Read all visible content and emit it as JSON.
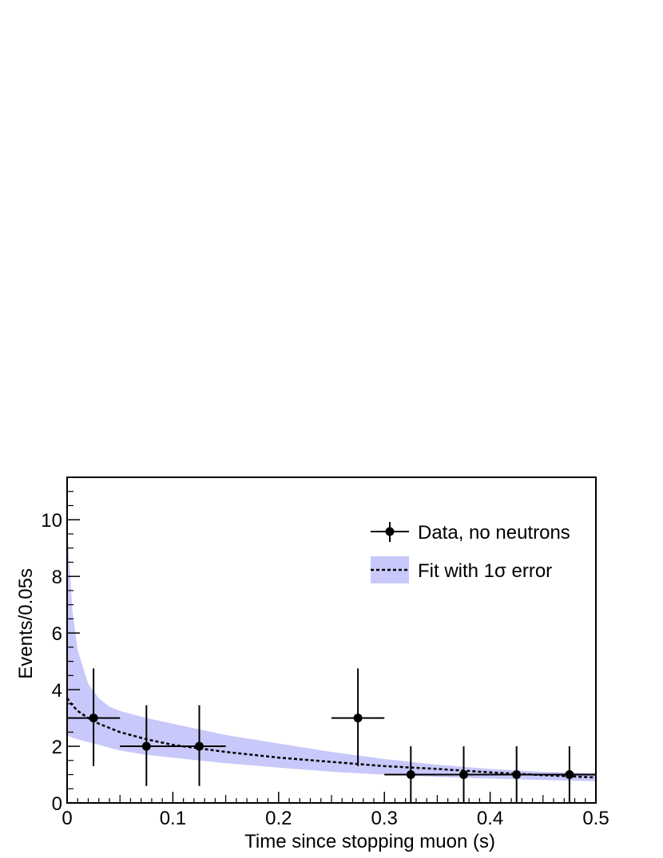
{
  "chart_data": {
    "type": "scatter",
    "title": "",
    "xlabel": "Time since stopping muon (s)",
    "ylabel": "Events/0.05s",
    "xlim": [
      0,
      0.5
    ],
    "ylim": [
      0,
      11.5
    ],
    "xticks": [
      0,
      0.1,
      0.2,
      0.3,
      0.4,
      0.5
    ],
    "xtick_labels": [
      "0",
      "0.1",
      "0.2",
      "0.3",
      "0.4",
      "0.5"
    ],
    "yticks": [
      0,
      2,
      4,
      6,
      8,
      10
    ],
    "ytick_labels": [
      "0",
      "2",
      "4",
      "6",
      "8",
      "10"
    ],
    "grid": false,
    "legend": {
      "position": "top-right",
      "entries": [
        {
          "label": "Data, no neutrons",
          "kind": "data-point"
        },
        {
          "label": "Fit with 1σ error",
          "kind": "fit-band"
        }
      ]
    },
    "series": [
      {
        "name": "Data, no neutrons",
        "type": "errorbar",
        "color": "#000000",
        "points": [
          {
            "x": 0.025,
            "y": 3,
            "xerr": 0.025,
            "yerr_low": 1.7,
            "yerr_high": 1.75
          },
          {
            "x": 0.075,
            "y": 2,
            "xerr": 0.025,
            "yerr_low": 1.4,
            "yerr_high": 1.45
          },
          {
            "x": 0.125,
            "y": 2,
            "xerr": 0.025,
            "yerr_low": 1.4,
            "yerr_high": 1.45
          },
          {
            "x": 0.275,
            "y": 3,
            "xerr": 0.025,
            "yerr_low": 1.7,
            "yerr_high": 1.75
          },
          {
            "x": 0.325,
            "y": 1,
            "xerr": 0.025,
            "yerr_low": 1.0,
            "yerr_high": 1.0
          },
          {
            "x": 0.375,
            "y": 1,
            "xerr": 0.025,
            "yerr_low": 1.0,
            "yerr_high": 1.0
          },
          {
            "x": 0.425,
            "y": 1,
            "xerr": 0.025,
            "yerr_low": 1.0,
            "yerr_high": 1.0
          },
          {
            "x": 0.475,
            "y": 1,
            "xerr": 0.025,
            "yerr_low": 1.0,
            "yerr_high": 1.0
          }
        ]
      },
      {
        "name": "Fit with 1σ error",
        "type": "line",
        "style": "dashed",
        "color": "#000000",
        "x": [
          0,
          0.005,
          0.01,
          0.02,
          0.03,
          0.05,
          0.075,
          0.1,
          0.15,
          0.2,
          0.25,
          0.3,
          0.35,
          0.4,
          0.45,
          0.5
        ],
        "y": [
          3.7,
          3.45,
          3.25,
          3.0,
          2.8,
          2.5,
          2.25,
          2.05,
          1.8,
          1.6,
          1.45,
          1.3,
          1.2,
          1.08,
          0.98,
          0.9
        ]
      },
      {
        "name": "1σ band",
        "type": "area",
        "color": "#c8c8fa",
        "x": [
          0,
          0.005,
          0.01,
          0.02,
          0.03,
          0.04,
          0.05,
          0.075,
          0.1,
          0.15,
          0.2,
          0.25,
          0.3,
          0.35,
          0.4,
          0.45,
          0.5
        ],
        "upper": [
          9.8,
          6.8,
          5.4,
          4.2,
          3.7,
          3.4,
          3.25,
          3.0,
          2.8,
          2.4,
          2.1,
          1.8,
          1.55,
          1.35,
          1.2,
          1.1,
          1.05
        ],
        "lower": [
          2.4,
          2.3,
          2.25,
          2.15,
          2.05,
          1.95,
          1.85,
          1.7,
          1.6,
          1.4,
          1.25,
          1.1,
          1.0,
          0.92,
          0.86,
          0.81,
          0.77
        ]
      }
    ]
  }
}
